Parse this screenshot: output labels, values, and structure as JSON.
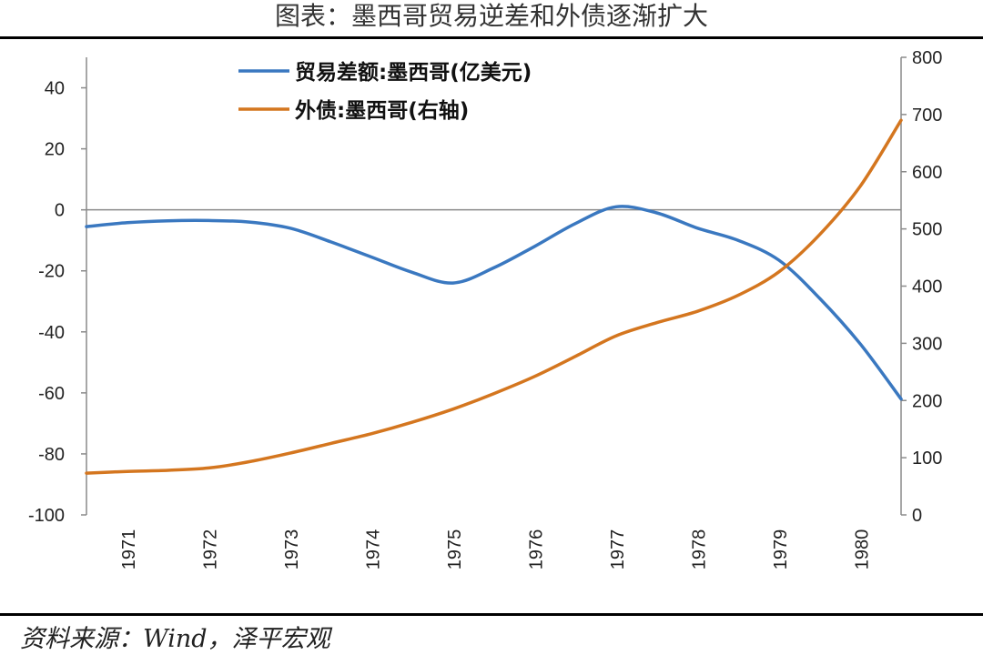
{
  "title": "图表：墨西哥贸易逆差和外债逐渐扩大",
  "source": "资料来源：Wind，泽平宏观",
  "chart_data": {
    "type": "line",
    "title": "图表：墨西哥贸易逆差和外债逐渐扩大",
    "x_categories": [
      "1971",
      "1972",
      "1973",
      "1974",
      "1975",
      "1976",
      "1977",
      "1978",
      "1979",
      "1980"
    ],
    "y_left": {
      "lim": [
        -100,
        50
      ],
      "ticks": [
        40,
        20,
        0,
        -20,
        -40,
        -60,
        -80,
        -100
      ]
    },
    "y_right": {
      "lim": [
        0,
        800
      ],
      "ticks": [
        800,
        700,
        600,
        500,
        400,
        300,
        200,
        100,
        0
      ]
    },
    "legend_position": "top-left",
    "series": [
      {
        "name": "贸易差额:墨西哥(亿美元)",
        "axis": "left",
        "color": "#3a78c0",
        "x": [
          1970.5,
          1971,
          1971.5,
          1972,
          1972.5,
          1973,
          1973.5,
          1974,
          1974.5,
          1975,
          1975.5,
          1976,
          1976.5,
          1977,
          1977.5,
          1978,
          1978.5,
          1979,
          1979.5,
          1980,
          1980.5
        ],
        "y": [
          -5.5,
          -4.2,
          -3.6,
          -3.5,
          -4,
          -6,
          -10.5,
          -15.5,
          -20.5,
          -24,
          -19,
          -12,
          -4.5,
          1,
          -1,
          -6,
          -10,
          -16.5,
          -29,
          -44,
          -62
        ]
      },
      {
        "name": "外债:墨西哥(右轴)",
        "axis": "right",
        "color": "#d4761f",
        "x": [
          1970.5,
          1971,
          1971.5,
          1972,
          1972.5,
          1973,
          1973.5,
          1974,
          1974.5,
          1975,
          1975.5,
          1976,
          1976.5,
          1977,
          1977.5,
          1978,
          1978.5,
          1979,
          1979.5,
          1980,
          1980.5
        ],
        "y": [
          73,
          76,
          78,
          82,
          93,
          108,
          125,
          142,
          162,
          185,
          212,
          242,
          277,
          313,
          336,
          356,
          384,
          425,
          490,
          575,
          690
        ]
      }
    ]
  }
}
